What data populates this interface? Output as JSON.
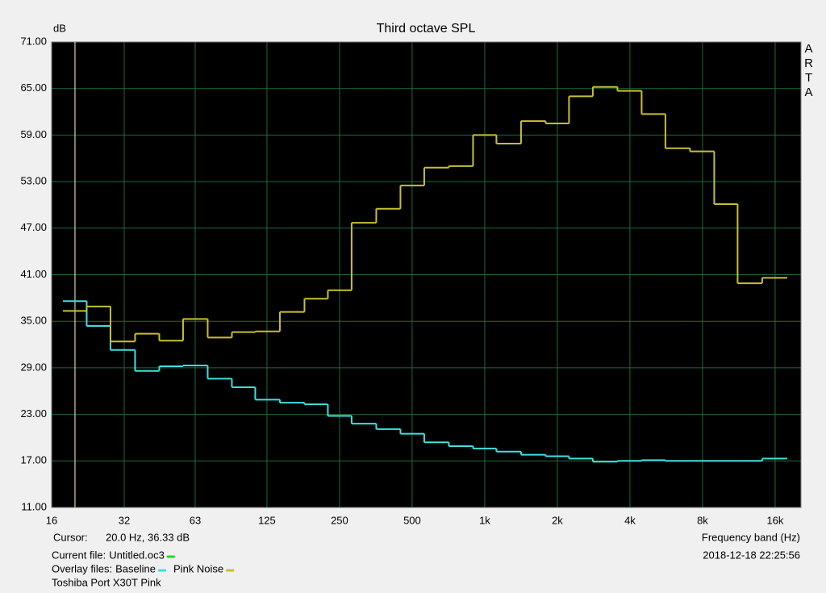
{
  "chart_data": {
    "type": "step",
    "title": "Third octave SPL",
    "y_label": "dB",
    "x_label": "Frequency band (Hz)",
    "watermark": "ARTA",
    "log_x": true,
    "grid": true,
    "background": "#000000",
    "grid_color": "#1e6b3a",
    "x": [
      20,
      25,
      31.5,
      40,
      50,
      63,
      80,
      100,
      125,
      160,
      200,
      250,
      315,
      400,
      500,
      630,
      800,
      1000,
      1250,
      1600,
      2000,
      2500,
      3150,
      4000,
      5000,
      6300,
      8000,
      10000,
      12500,
      16000
    ],
    "series": [
      {
        "name": "Baseline",
        "color": "#3fe0e0",
        "values": [
          37.6,
          34.4,
          31.3,
          28.6,
          29.2,
          29.3,
          27.6,
          26.5,
          24.9,
          24.5,
          24.3,
          22.8,
          21.8,
          21.1,
          20.5,
          19.4,
          18.9,
          18.6,
          18.2,
          17.8,
          17.6,
          17.3,
          16.9,
          17.0,
          17.1,
          17.0,
          17.0,
          17.0,
          17.0,
          17.3
        ]
      },
      {
        "name": "Pink Noise",
        "color": "#c8c030",
        "values": [
          36.33,
          36.9,
          32.4,
          33.4,
          32.5,
          35.3,
          32.9,
          33.6,
          33.7,
          36.2,
          37.9,
          39.0,
          47.7,
          49.5,
          52.5,
          54.8,
          55.0,
          59.0,
          57.9,
          60.8,
          60.5,
          64.0,
          65.2,
          64.7,
          61.7,
          57.3,
          56.9,
          50.1,
          39.9,
          40.6
        ]
      }
    ],
    "xlim": [
      16,
      20480
    ],
    "xticks": [
      16,
      32,
      63,
      125,
      250,
      500,
      {
        "value": 1000,
        "label": "1k"
      },
      {
        "value": 2000,
        "label": "2k"
      },
      {
        "value": 4000,
        "label": "4k"
      },
      {
        "value": 8000,
        "label": "8k"
      },
      {
        "value": 16000,
        "label": "16k"
      }
    ],
    "ylim": [
      11,
      71
    ],
    "yticks": [
      {
        "value": 11,
        "label": "11.00"
      },
      {
        "value": 17,
        "label": "17.00"
      },
      {
        "value": 23,
        "label": "23.00"
      },
      {
        "value": 29,
        "label": "29.00"
      },
      {
        "value": 35,
        "label": "35.00"
      },
      {
        "value": 41,
        "label": "41.00"
      },
      {
        "value": 47,
        "label": "47.00"
      },
      {
        "value": 53,
        "label": "53.00"
      },
      {
        "value": 59,
        "label": "59.00"
      },
      {
        "value": 65,
        "label": "65.00"
      },
      {
        "value": 71,
        "label": "71.00"
      }
    ],
    "cursor": {
      "label": "Cursor:",
      "text": "20.0 Hz, 36.33 dB",
      "x": 20,
      "color": "#fff8c0"
    },
    "current_file": {
      "label": "Current file:",
      "name": "Untitled.oc3",
      "color": "#22dd22"
    },
    "overlay_label": "Overlay files:",
    "timestamp": "2018-12-18  22:25:56",
    "note": "Toshiba Port X30T Pink"
  }
}
